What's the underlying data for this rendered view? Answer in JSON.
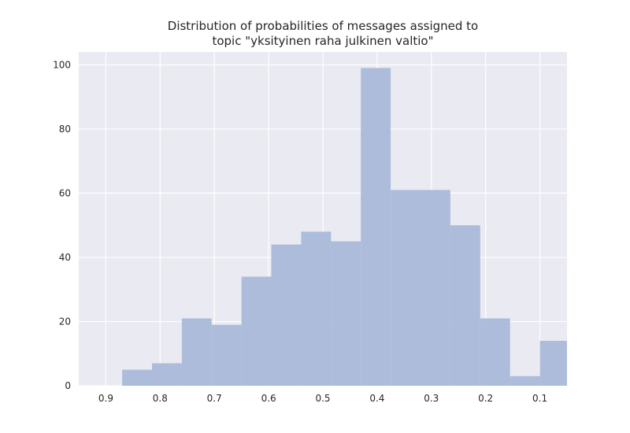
{
  "chart_data": {
    "type": "bar",
    "title_lines": [
      "Distribution of probabilities of messages assigned to",
      "topic \"yksityinen raha julkinen valtio\""
    ],
    "xlabel": "",
    "ylabel": "",
    "x_axis_reversed": true,
    "xlim": [
      0.95,
      0.05
    ],
    "ylim": [
      0,
      104
    ],
    "grid": true,
    "x_ticks": [
      "0.9",
      "0.8",
      "0.7",
      "0.6",
      "0.5",
      "0.4",
      "0.3",
      "0.2",
      "0.1"
    ],
    "y_ticks": [
      "0",
      "20",
      "40",
      "60",
      "80",
      "100"
    ],
    "bin_edges": [
      0.87,
      0.815,
      0.76,
      0.705,
      0.65,
      0.595,
      0.54,
      0.485,
      0.43,
      0.375,
      0.32,
      0.265,
      0.21,
      0.155,
      0.1,
      0.045
    ],
    "values": [
      5,
      7,
      21,
      19,
      34,
      44,
      48,
      45,
      99,
      61,
      61,
      50,
      21,
      3,
      14
    ],
    "bar_color": "#a9b9d8",
    "background_color": "#eaeaf2",
    "grid_color": "#ffffff"
  }
}
